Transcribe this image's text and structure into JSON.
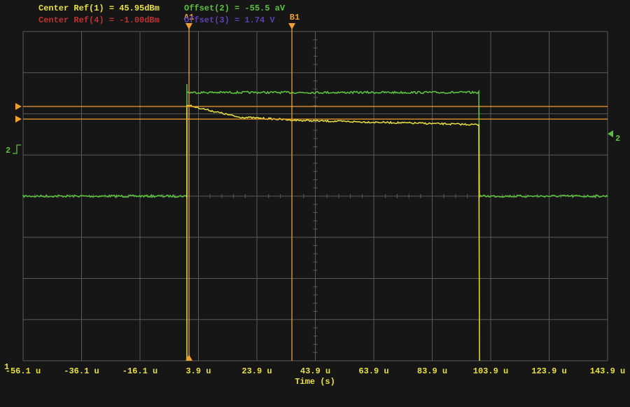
{
  "header": {
    "center_ref_1": "Center Ref(1) = 45.95dBm",
    "offset_2": "Offset(2) = -55.5 aV",
    "center_ref_4": "Center Ref(4) = -1.00dBm",
    "offset_3": "Offset(3) = 1.74 V"
  },
  "cursors": [
    "A1",
    "B1"
  ],
  "channel_markers": {
    "left": "2",
    "right": "2",
    "ground": "1"
  },
  "x_axis": {
    "labels": [
      "-56.1 u",
      "-36.1 u",
      "-16.1 u",
      "3.9 u",
      "23.9 u",
      "43.9 u",
      "63.9 u",
      "83.9 u",
      "103.9 u",
      "123.9 u",
      "143.9 u"
    ],
    "title": "Time (s)"
  }
}
